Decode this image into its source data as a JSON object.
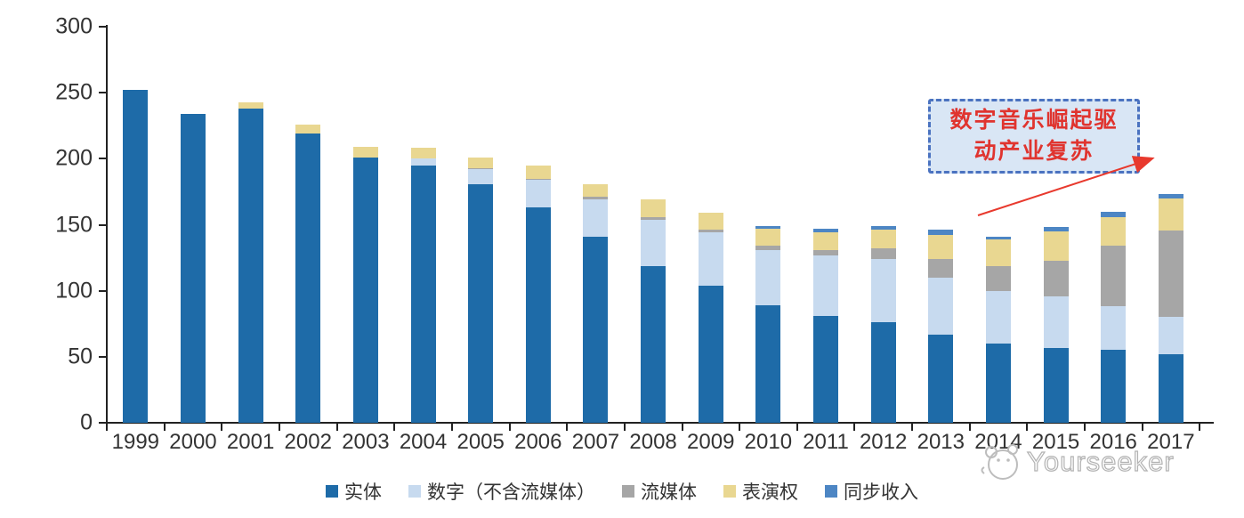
{
  "chart_data": {
    "type": "bar",
    "stacked": true,
    "title": "",
    "xlabel": "",
    "ylabel": "",
    "ylim": [
      0,
      300
    ],
    "yticks": [
      0,
      50,
      100,
      150,
      200,
      250,
      300
    ],
    "grid": false,
    "legend_position": "bottom",
    "categories": [
      "1999",
      "2000",
      "2001",
      "2002",
      "2003",
      "2004",
      "2005",
      "2006",
      "2007",
      "2008",
      "2009",
      "2010",
      "2011",
      "2012",
      "2013",
      "2014",
      "2015",
      "2016",
      "2017"
    ],
    "series": [
      {
        "key": "physical",
        "name": "实体",
        "color": "#1E6BA8",
        "values": [
          252,
          234,
          238,
          219,
          201,
          195,
          181,
          163,
          141,
          119,
          104,
          89,
          81,
          76,
          67,
          60,
          57,
          55,
          52
        ]
      },
      {
        "key": "digital",
        "name": "数字（不含流媒体）",
        "color": "#C7DAEF",
        "values": [
          0,
          0,
          0,
          0,
          0,
          5,
          11,
          21,
          28,
          35,
          40,
          42,
          46,
          48,
          43,
          40,
          39,
          33,
          28
        ]
      },
      {
        "key": "streaming",
        "name": "流媒体",
        "color": "#A6A6A6",
        "values": [
          0,
          0,
          0,
          0,
          0,
          0,
          1,
          1,
          2,
          2,
          2,
          3,
          4,
          8,
          14,
          19,
          27,
          46,
          66
        ]
      },
      {
        "key": "performance",
        "name": "表演权",
        "color": "#E9D791",
        "values": [
          0,
          0,
          5,
          7,
          8,
          8,
          8,
          10,
          10,
          13,
          13,
          13,
          13,
          14,
          18,
          20,
          22,
          22,
          24
        ]
      },
      {
        "key": "sync",
        "name": "同步收入",
        "color": "#4D86C4",
        "values": [
          0,
          0,
          0,
          0,
          0,
          0,
          0,
          0,
          0,
          0,
          0,
          2,
          3,
          3,
          4,
          2,
          3,
          4,
          3
        ]
      }
    ]
  },
  "annotation": {
    "line1": "数字音乐崛起驱",
    "line2": "动产业复苏"
  },
  "watermark": {
    "brand": "Yourseeker"
  },
  "colors": {
    "annotation_background": "#d9e6f5",
    "annotation_border": "#4a72c0",
    "annotation_text": "#e0342f",
    "arrow": "#e8392d",
    "axis": "#222222",
    "tick_label": "#333333"
  }
}
